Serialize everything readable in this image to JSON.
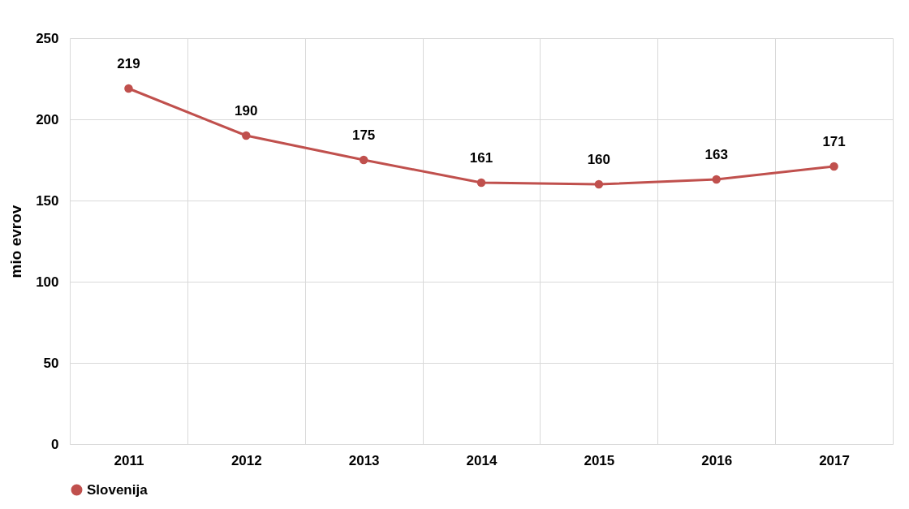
{
  "chart_data": {
    "type": "line",
    "ylabel": "mio evrov",
    "categories": [
      "2011",
      "2012",
      "2013",
      "2014",
      "2015",
      "2016",
      "2017"
    ],
    "series": [
      {
        "name": "Slovenija",
        "color": "#c0504d",
        "values": [
          219,
          190,
          175,
          161,
          160,
          163,
          171
        ]
      }
    ],
    "ylim": [
      0,
      250
    ],
    "yticks": [
      0,
      50,
      100,
      150,
      200,
      250
    ],
    "grid": true,
    "legend": "bottom",
    "marker": "circle",
    "line_style": "solid",
    "data_labels": true
  }
}
